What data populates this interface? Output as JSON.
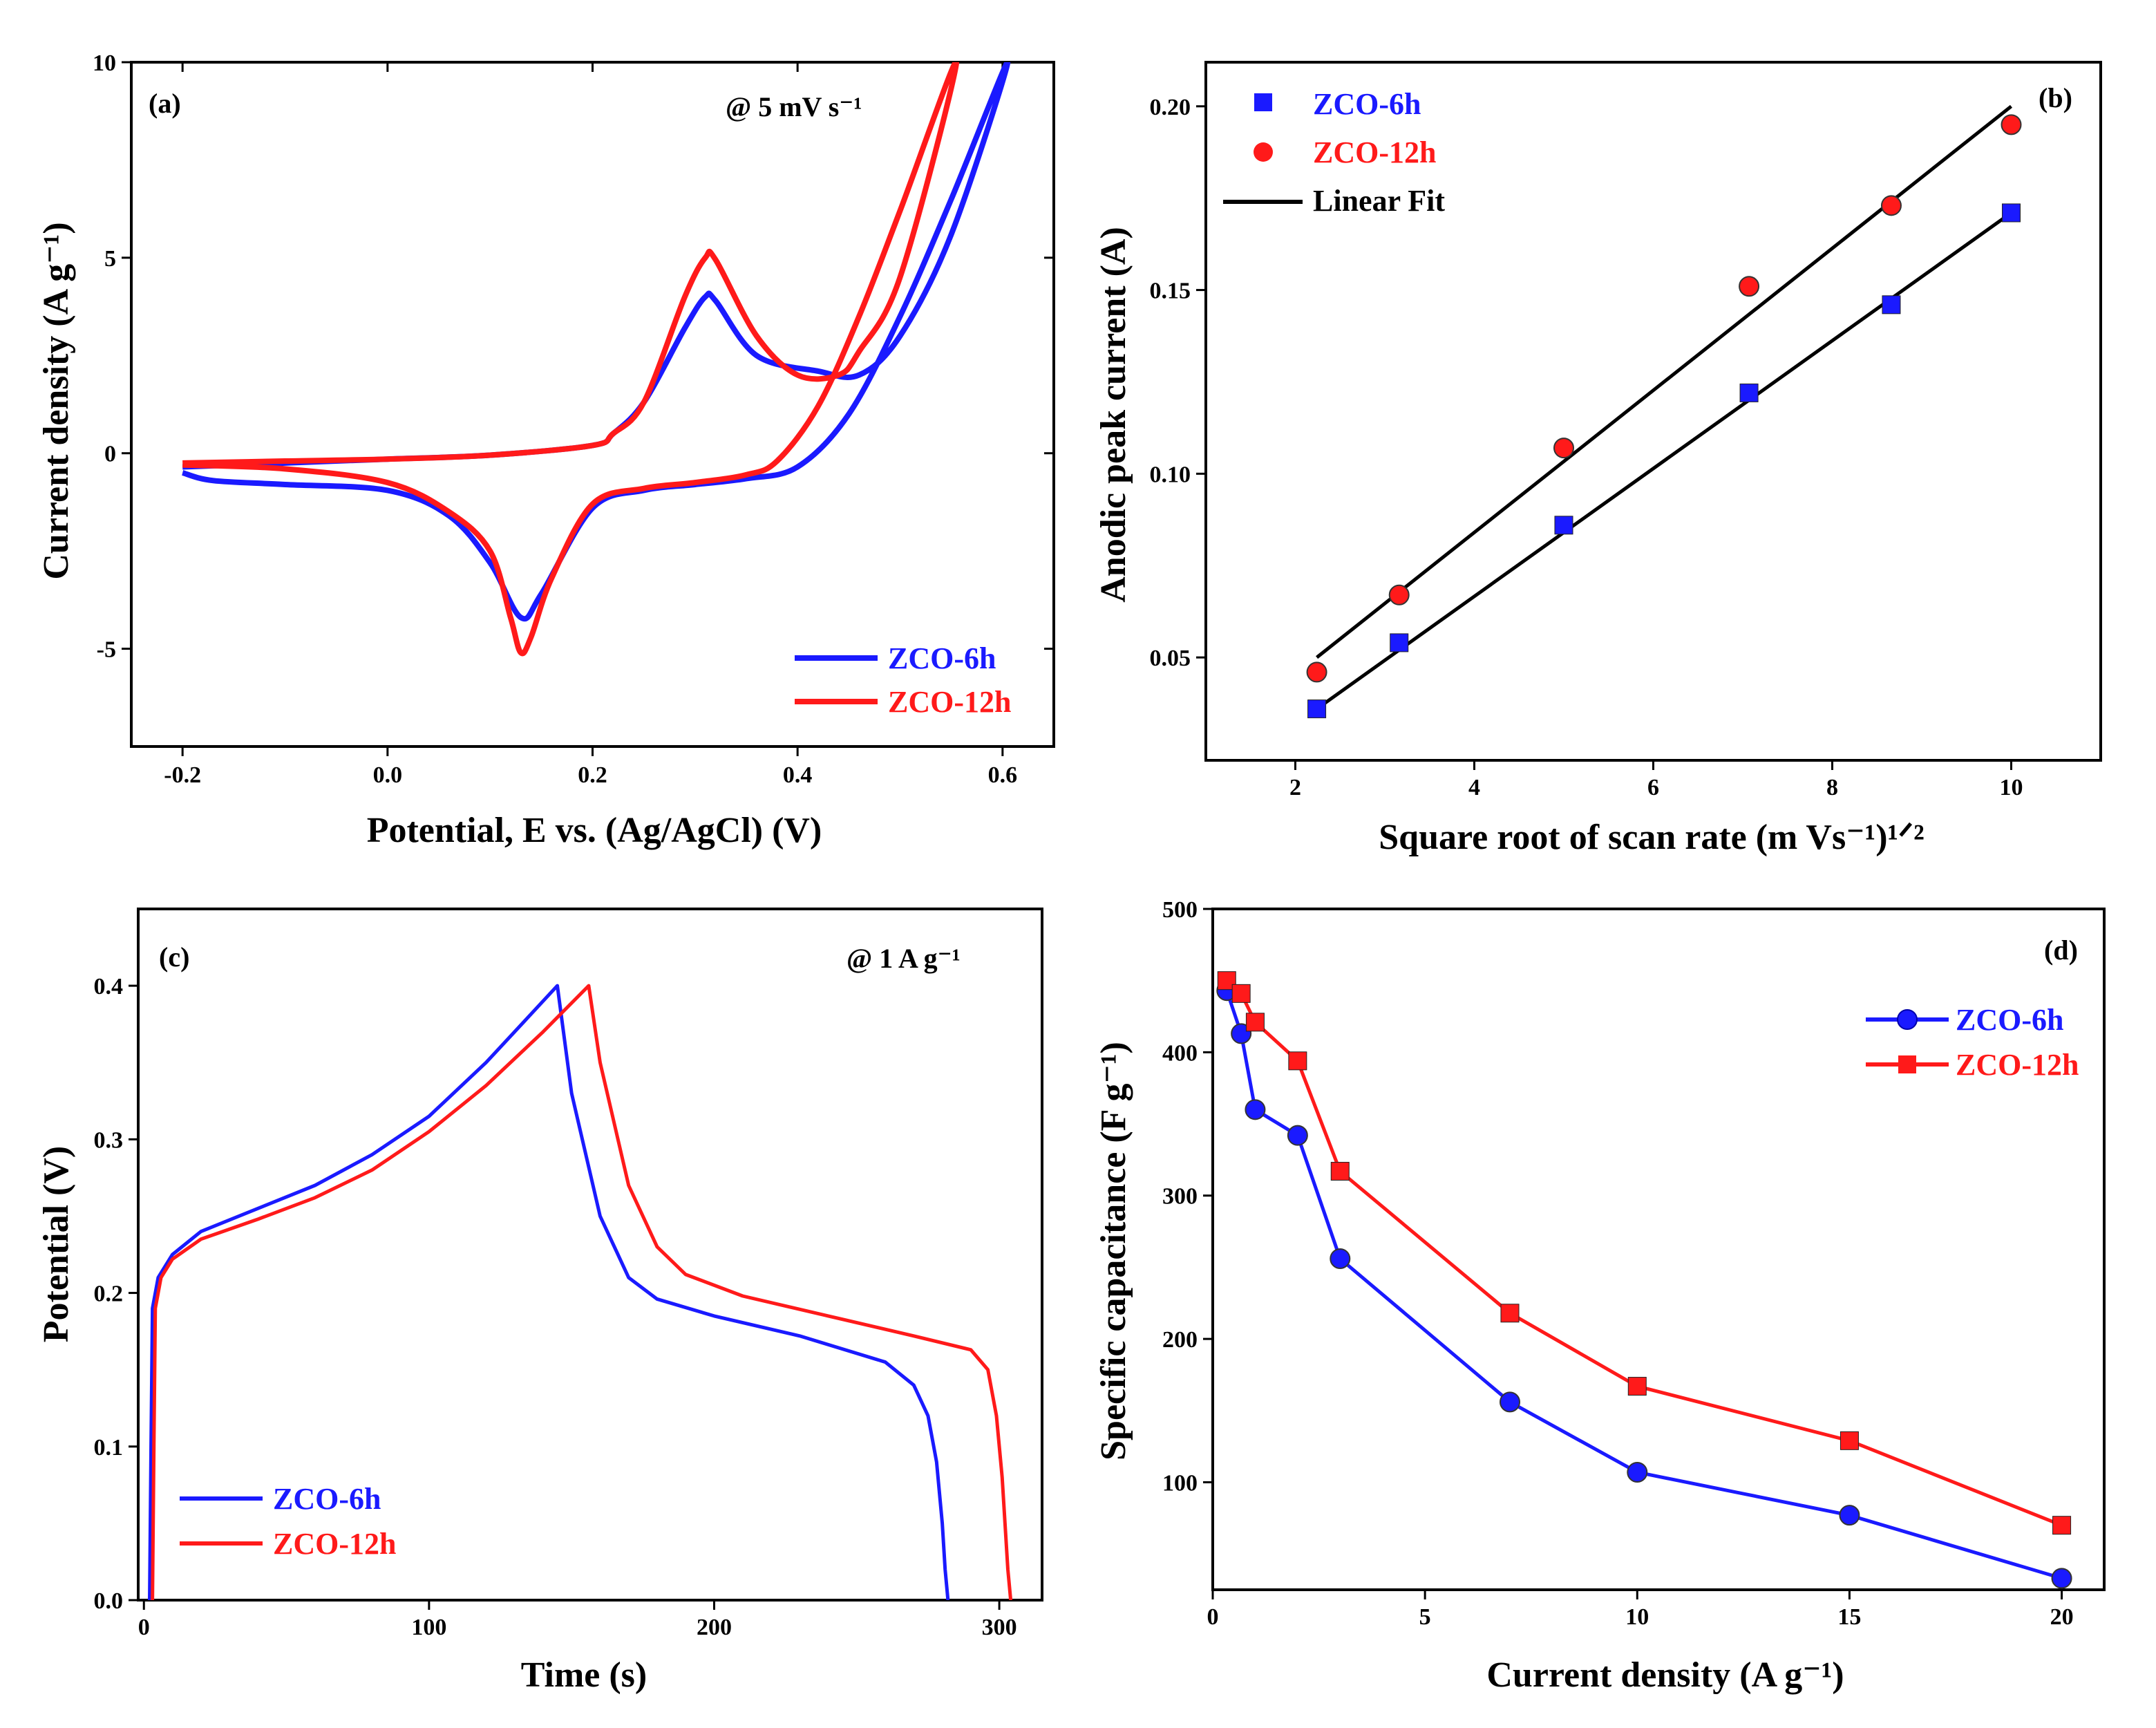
{
  "chart_data": [
    {
      "panel": "(a)",
      "type": "line",
      "title": "",
      "annotation": "@ 5 mV s⁻¹",
      "xlabel": "Potential, E vs. (Ag/AgCl) (V)",
      "ylabel": "Current density (A g⁻¹)",
      "xlim": [
        -0.25,
        0.65
      ],
      "ylim": [
        -7.5,
        10
      ],
      "xticks": [
        -0.2,
        0.0,
        0.2,
        0.4,
        0.6
      ],
      "xtick_labels": [
        "-0.2",
        "0.0",
        "0.2",
        "0.4",
        "0.6"
      ],
      "yticks": [
        -5,
        0,
        5,
        10
      ],
      "ytick_labels": [
        "-5",
        "0",
        "5",
        "10"
      ],
      "legend": "bottom-right",
      "series": [
        {
          "name": "ZCO-6h",
          "color": "#1a1aff",
          "x": [
            -0.2,
            -0.17,
            -0.1,
            0.0,
            0.06,
            0.1,
            0.13,
            0.15,
            0.2,
            0.25,
            0.3,
            0.35,
            0.4,
            0.45,
            0.5,
            0.55,
            0.605,
            0.55,
            0.5,
            0.46,
            0.42,
            0.36,
            0.32,
            0.31,
            0.29,
            0.25,
            0.22,
            0.2,
            0.1,
            0.0,
            -0.1,
            -0.2
          ],
          "y": [
            -0.5,
            -0.7,
            -0.8,
            -0.95,
            -1.6,
            -2.8,
            -4.2,
            -3.6,
            -1.4,
            -0.95,
            -0.8,
            -0.65,
            -0.35,
            1.0,
            3.5,
            6.5,
            10.0,
            5.6,
            3.0,
            2.0,
            2.1,
            2.5,
            3.9,
            4.0,
            3.2,
            1.3,
            0.5,
            0.2,
            -0.05,
            -0.15,
            -0.25,
            -0.35
          ]
        },
        {
          "name": "ZCO-12h",
          "color": "#ff1a1a",
          "x": [
            -0.2,
            -0.1,
            0.0,
            0.06,
            0.1,
            0.12,
            0.13,
            0.14,
            0.16,
            0.2,
            0.25,
            0.3,
            0.35,
            0.38,
            0.42,
            0.46,
            0.5,
            0.555,
            0.5,
            0.46,
            0.44,
            0.4,
            0.36,
            0.32,
            0.31,
            0.29,
            0.25,
            0.22,
            0.2,
            0.1,
            0.0,
            -0.1,
            -0.2
          ],
          "y": [
            -0.3,
            -0.4,
            -0.75,
            -1.5,
            -2.5,
            -4.2,
            -5.1,
            -4.7,
            -3.2,
            -1.3,
            -0.9,
            -0.75,
            -0.55,
            -0.2,
            1.2,
            3.5,
            6.2,
            10.0,
            4.5,
            2.6,
            2.0,
            2.0,
            3.0,
            4.95,
            5.0,
            4.0,
            1.3,
            0.5,
            0.2,
            -0.05,
            -0.15,
            -0.2,
            -0.25
          ]
        }
      ]
    },
    {
      "panel": "(b)",
      "type": "scatter",
      "title": "",
      "xlabel": "Square root of scan rate (m Vs⁻¹)¹ᐟ²",
      "ylabel": "Anodic peak current (A)",
      "xlim": [
        1.0,
        11.0
      ],
      "ylim": [
        0.022,
        0.212
      ],
      "xticks": [
        2,
        4,
        6,
        8,
        10
      ],
      "xtick_labels": [
        "2",
        "4",
        "6",
        "8",
        "10"
      ],
      "yticks": [
        0.05,
        0.1,
        0.15,
        0.2
      ],
      "ytick_labels": [
        "0.05",
        "0.10",
        "0.15",
        "0.20"
      ],
      "legend": "top-left",
      "series": [
        {
          "name": "ZCO-6h",
          "color": "#1a1aff",
          "marker": "square",
          "x": [
            2.24,
            3.16,
            5.0,
            7.07,
            8.66,
            10.0
          ],
          "y": [
            0.036,
            0.054,
            0.086,
            0.122,
            0.146,
            0.171
          ]
        },
        {
          "name": "ZCO-12h",
          "color": "#ff1a1a",
          "marker": "sphere",
          "x": [
            2.24,
            3.16,
            5.0,
            7.07,
            8.66,
            10.0
          ],
          "y": [
            0.046,
            0.067,
            0.107,
            0.151,
            0.173,
            0.195
          ]
        }
      ],
      "fits": [
        {
          "name": "Linear Fit",
          "color": "#000000",
          "x": [
            2.24,
            10.0
          ],
          "y": [
            0.036,
            0.171
          ]
        },
        {
          "name": "Linear Fit",
          "color": "#000000",
          "x": [
            2.24,
            10.0
          ],
          "y": [
            0.05,
            0.2
          ]
        }
      ],
      "fit_legend_label": "Linear Fit"
    },
    {
      "panel": "(c)",
      "type": "line",
      "title": "",
      "annotation": "@ 1 A g⁻¹",
      "xlabel": "Time (s)",
      "ylabel": "Potential (V)",
      "xlim": [
        -2,
        315
      ],
      "ylim": [
        0.0,
        0.45
      ],
      "xticks": [
        0,
        100,
        200,
        300
      ],
      "xtick_labels": [
        "0",
        "100",
        "200",
        "300"
      ],
      "yticks": [
        0.0,
        0.1,
        0.2,
        0.3,
        0.4
      ],
      "ytick_labels": [
        "0.0",
        "0.1",
        "0.2",
        "0.3",
        "0.4"
      ],
      "legend": "bottom-left",
      "series": [
        {
          "name": "ZCO-6h",
          "color": "#1a1aff",
          "x": [
            2,
            2.5,
            3,
            5,
            10,
            20,
            40,
            60,
            80,
            100,
            120,
            135,
            145,
            150,
            160,
            170,
            180,
            200,
            230,
            260,
            270,
            275,
            278,
            280,
            281,
            282
          ],
          "y": [
            0.0,
            0.1,
            0.19,
            0.21,
            0.225,
            0.24,
            0.255,
            0.27,
            0.29,
            0.315,
            0.35,
            0.38,
            0.4,
            0.33,
            0.25,
            0.21,
            0.196,
            0.185,
            0.172,
            0.155,
            0.14,
            0.12,
            0.09,
            0.05,
            0.02,
            0.0
          ]
        },
        {
          "name": "ZCO-12h",
          "color": "#ff1a1a",
          "x": [
            3,
            3.5,
            4,
            6,
            10,
            20,
            40,
            60,
            80,
            100,
            120,
            140,
            156,
            160,
            170,
            180,
            190,
            210,
            240,
            270,
            290,
            296,
            299,
            301,
            302,
            303,
            304
          ],
          "y": [
            0.0,
            0.1,
            0.19,
            0.21,
            0.222,
            0.235,
            0.248,
            0.262,
            0.28,
            0.305,
            0.335,
            0.37,
            0.4,
            0.35,
            0.27,
            0.23,
            0.212,
            0.198,
            0.185,
            0.172,
            0.163,
            0.15,
            0.12,
            0.08,
            0.05,
            0.02,
            0.0
          ]
        }
      ]
    },
    {
      "panel": "(d)",
      "type": "line",
      "title": "",
      "xlabel": "Current density (A g⁻¹)",
      "ylabel": "Specific capacitance (F g⁻¹)",
      "xlim": [
        0,
        21
      ],
      "ylim": [
        25,
        500
      ],
      "xticks": [
        0,
        5,
        10,
        15,
        20
      ],
      "xtick_labels": [
        "0",
        "5",
        "10",
        "15",
        "20"
      ],
      "yticks": [
        100,
        200,
        300,
        400,
        500
      ],
      "ytick_labels": [
        "100",
        "200",
        "300",
        "400",
        "500"
      ],
      "legend": "top-right",
      "series": [
        {
          "name": "ZCO-6h",
          "color": "#1a1aff",
          "marker": "sphere",
          "x": [
            0.33,
            0.67,
            1,
            2,
            3,
            7,
            10,
            15,
            20
          ],
          "y": [
            443,
            413,
            360,
            342,
            256,
            156,
            107,
            77,
            33
          ]
        },
        {
          "name": "ZCO-12h",
          "color": "#ff1a1a",
          "marker": "square",
          "x": [
            0.33,
            0.67,
            1,
            2,
            3,
            7,
            10,
            15,
            20
          ],
          "y": [
            450,
            441,
            421,
            394,
            317,
            218,
            167,
            129,
            70
          ]
        }
      ]
    }
  ]
}
